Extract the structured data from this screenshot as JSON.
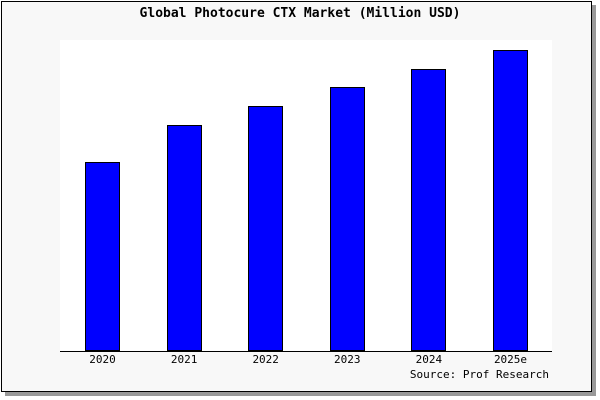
{
  "chart_data": {
    "type": "bar",
    "title": "Global Photocure CTX Market (Million USD)",
    "categories": [
      "2020",
      "2021",
      "2022",
      "2023",
      "2024",
      "2025e"
    ],
    "values": [
      189,
      226,
      245,
      264,
      282,
      301
    ],
    "xlabel": "",
    "ylabel": "",
    "ylim": [
      0,
      311
    ],
    "grid": false,
    "bar_color": "#0000ff",
    "source": "Source: Prof Research"
  }
}
